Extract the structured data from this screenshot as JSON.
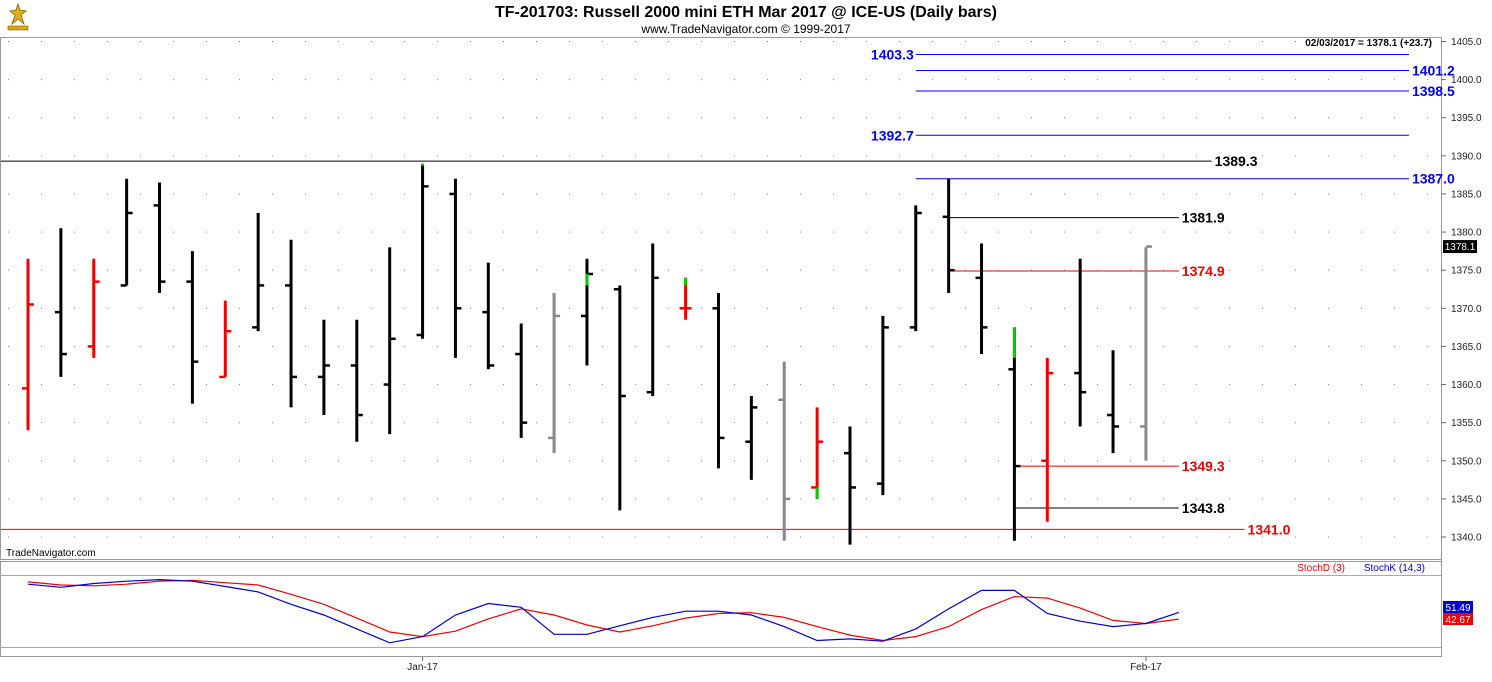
{
  "chart_data": {
    "type": "ohlc",
    "title": "TF-201703:  Russell 2000 mini ETH Mar 2017 @ ICE-US  (Daily bars)",
    "subtitle": "www.TradeNavigator.com © 1999-2017",
    "watermark": "TradeNavigator.com",
    "last_info": "02/03/2017 = 1378.1 (+23.7)",
    "last_price_label": "1378.1",
    "last_price": 1378.1,
    "ylim": [
      1336.5,
      1406.5
    ],
    "y_ticks": [
      "1340.0",
      "1345.0",
      "1350.0",
      "1355.0",
      "1360.0",
      "1365.0",
      "1370.0",
      "1375.0",
      "1380.0",
      "1385.0",
      "1390.0",
      "1395.0",
      "1400.0",
      "1405.0"
    ],
    "x_labels": [
      {
        "label": "Jan-17",
        "bar": 12
      },
      {
        "label": "Feb-17",
        "bar": 34
      }
    ],
    "colors": {
      "up": "#000000",
      "down": "#ee0000",
      "inside": "#888888",
      "new_high": "#00cc00",
      "level_blue": "#0000ff",
      "level_red": "#ee0000",
      "level_black": "#000000"
    },
    "bars": [
      {
        "o": 1359.5,
        "h": 1376.5,
        "l": 1354.0,
        "c": 1370.5,
        "color": "down"
      },
      {
        "o": 1369.5,
        "h": 1380.5,
        "l": 1361.0,
        "c": 1364.0,
        "color": "up"
      },
      {
        "o": 1365.0,
        "h": 1376.5,
        "l": 1363.5,
        "c": 1373.5,
        "color": "down"
      },
      {
        "o": 1373.0,
        "h": 1387.0,
        "l": 1373.0,
        "c": 1382.5,
        "color": "up"
      },
      {
        "o": 1383.5,
        "h": 1386.5,
        "l": 1372.0,
        "c": 1373.5,
        "color": "up"
      },
      {
        "o": 1373.5,
        "h": 1377.5,
        "l": 1357.5,
        "c": 1363.0,
        "color": "up"
      },
      {
        "o": 1361.0,
        "h": 1371.0,
        "l": 1361.0,
        "c": 1367.0,
        "color": "down"
      },
      {
        "o": 1367.5,
        "h": 1382.5,
        "l": 1367.0,
        "c": 1373.0,
        "color": "up"
      },
      {
        "o": 1373.0,
        "h": 1379.0,
        "l": 1357.0,
        "c": 1361.0,
        "color": "up"
      },
      {
        "o": 1361.0,
        "h": 1368.5,
        "l": 1356.0,
        "c": 1362.5,
        "color": "up"
      },
      {
        "o": 1362.5,
        "h": 1368.5,
        "l": 1352.5,
        "c": 1356.0,
        "color": "up"
      },
      {
        "o": 1360.0,
        "h": 1378.0,
        "l": 1353.5,
        "c": 1366.0,
        "color": "up"
      },
      {
        "o": 1366.5,
        "h": 1389.0,
        "l": 1366.0,
        "c": 1386.0,
        "color": "up",
        "nh": [
          1388.7,
          1389.0
        ]
      },
      {
        "o": 1385.0,
        "h": 1387.0,
        "l": 1363.5,
        "c": 1370.0,
        "color": "up"
      },
      {
        "o": 1369.5,
        "h": 1376.0,
        "l": 1362.0,
        "c": 1362.5,
        "color": "up"
      },
      {
        "o": 1364.0,
        "h": 1368.0,
        "l": 1353.0,
        "c": 1355.0,
        "color": "up"
      },
      {
        "o": 1353.0,
        "h": 1372.0,
        "l": 1351.0,
        "c": 1369.0,
        "color": "inside"
      },
      {
        "o": 1369.0,
        "h": 1376.5,
        "l": 1362.5,
        "c": 1374.5,
        "color": "up",
        "nh": [
          1373.0,
          1374.5
        ]
      },
      {
        "o": 1372.5,
        "h": 1373.0,
        "l": 1343.5,
        "c": 1358.5,
        "color": "up"
      },
      {
        "o": 1359.0,
        "h": 1378.5,
        "l": 1358.5,
        "c": 1374.0,
        "color": "up"
      },
      {
        "o": 1370.0,
        "h": 1374.0,
        "l": 1368.5,
        "c": 1370.0,
        "color": "down",
        "nh": [
          1373.0,
          1374.0
        ]
      },
      {
        "o": 1370.0,
        "h": 1372.0,
        "l": 1349.0,
        "c": 1353.0,
        "color": "up"
      },
      {
        "o": 1352.5,
        "h": 1358.5,
        "l": 1347.5,
        "c": 1357.0,
        "color": "up"
      },
      {
        "o": 1358.0,
        "h": 1363.0,
        "l": 1339.5,
        "c": 1345.0,
        "color": "inside"
      },
      {
        "o": 1346.5,
        "h": 1357.0,
        "l": 1345.0,
        "c": 1352.5,
        "color": "down",
        "nh": [
          1345.0,
          1346.5
        ]
      },
      {
        "o": 1351.0,
        "h": 1354.5,
        "l": 1339.0,
        "c": 1346.5,
        "color": "up"
      },
      {
        "o": 1347.0,
        "h": 1369.0,
        "l": 1345.5,
        "c": 1367.5,
        "color": "up"
      },
      {
        "o": 1367.5,
        "h": 1383.5,
        "l": 1367.0,
        "c": 1382.5,
        "color": "up"
      },
      {
        "o": 1382.0,
        "h": 1387.0,
        "l": 1372.0,
        "c": 1375.0,
        "color": "up"
      },
      {
        "o": 1374.0,
        "h": 1378.5,
        "l": 1364.0,
        "c": 1367.5,
        "color": "up"
      },
      {
        "o": 1362.0,
        "h": 1367.5,
        "l": 1339.5,
        "c": 1349.3,
        "color": "up",
        "nh": [
          1363.5,
          1367.5
        ]
      },
      {
        "o": 1350.0,
        "h": 1363.5,
        "l": 1342.0,
        "c": 1361.5,
        "color": "down"
      },
      {
        "o": 1361.5,
        "h": 1376.5,
        "l": 1354.5,
        "c": 1359.0,
        "color": "up"
      },
      {
        "o": 1356.0,
        "h": 1364.5,
        "l": 1351.0,
        "c": 1354.5,
        "color": "up"
      },
      {
        "o": 1354.5,
        "h": 1378.0,
        "l": 1350.0,
        "c": 1378.1,
        "color": "inside"
      }
    ],
    "levels": [
      {
        "label": "1403.3",
        "value": 1403.3,
        "color": "level_blue",
        "from_bar": 27,
        "to_bar": 42,
        "label_side": "left"
      },
      {
        "label": "1401.2",
        "value": 1401.2,
        "color": "level_blue",
        "from_bar": 27,
        "to_bar": 42,
        "label_side": "right"
      },
      {
        "label": "1398.5",
        "value": 1398.5,
        "color": "level_blue",
        "from_bar": 27,
        "to_bar": 42,
        "label_side": "right"
      },
      {
        "label": "1392.7",
        "value": 1392.7,
        "color": "level_blue",
        "from_bar": 27,
        "to_bar": 42,
        "label_side": "left"
      },
      {
        "label": "1389.3",
        "value": 1389.3,
        "color": "level_black",
        "from_bar": -1,
        "to_bar": 36,
        "label_side": "right"
      },
      {
        "label": "1387.0",
        "value": 1387.0,
        "color": "level_blue",
        "from_bar": 27,
        "to_bar": 42,
        "label_side": "right"
      },
      {
        "label": "1381.9",
        "value": 1381.9,
        "color": "level_black",
        "from_bar": 28,
        "to_bar": 35,
        "label_side": "right"
      },
      {
        "label": "1374.9",
        "value": 1374.9,
        "color": "level_red",
        "from_bar": 28,
        "to_bar": 35,
        "label_side": "right"
      },
      {
        "label": "1349.3",
        "value": 1349.3,
        "color": "level_red",
        "from_bar": 30,
        "to_bar": 35,
        "label_side": "right"
      },
      {
        "label": "1343.8",
        "value": 1343.8,
        "color": "level_black",
        "from_bar": 30,
        "to_bar": 35,
        "label_side": "right"
      },
      {
        "label": "1341.0",
        "value": 1341.0,
        "color": "level_red",
        "from_bar": -1,
        "to_bar": 37,
        "label_side": "right"
      }
    ],
    "stochastic": {
      "ylim": [
        0,
        100
      ],
      "legend": [
        {
          "name": "StochD (3)",
          "color": "#ee0000"
        },
        {
          "name": "StochK (14,3)",
          "color": "#0000cc"
        }
      ],
      "stochK": [
        88,
        84,
        89,
        92,
        94,
        92,
        85,
        78,
        62,
        48,
        30,
        12,
        20,
        48,
        63,
        58,
        23,
        23,
        34,
        45,
        53,
        53,
        48,
        33,
        15,
        17,
        14,
        30,
        56,
        80,
        80,
        50,
        40,
        33,
        37,
        51.49
      ],
      "stochD": [
        91,
        87,
        86,
        88,
        92,
        93,
        90,
        87,
        75,
        62,
        44,
        26,
        20,
        27,
        43,
        56,
        48,
        35,
        26,
        34,
        44,
        50,
        51,
        45,
        33,
        22,
        15,
        20,
        33,
        55,
        72,
        70,
        57,
        41,
        37,
        42.67
      ],
      "k_label": "51.49",
      "d_label": "42.67"
    }
  }
}
